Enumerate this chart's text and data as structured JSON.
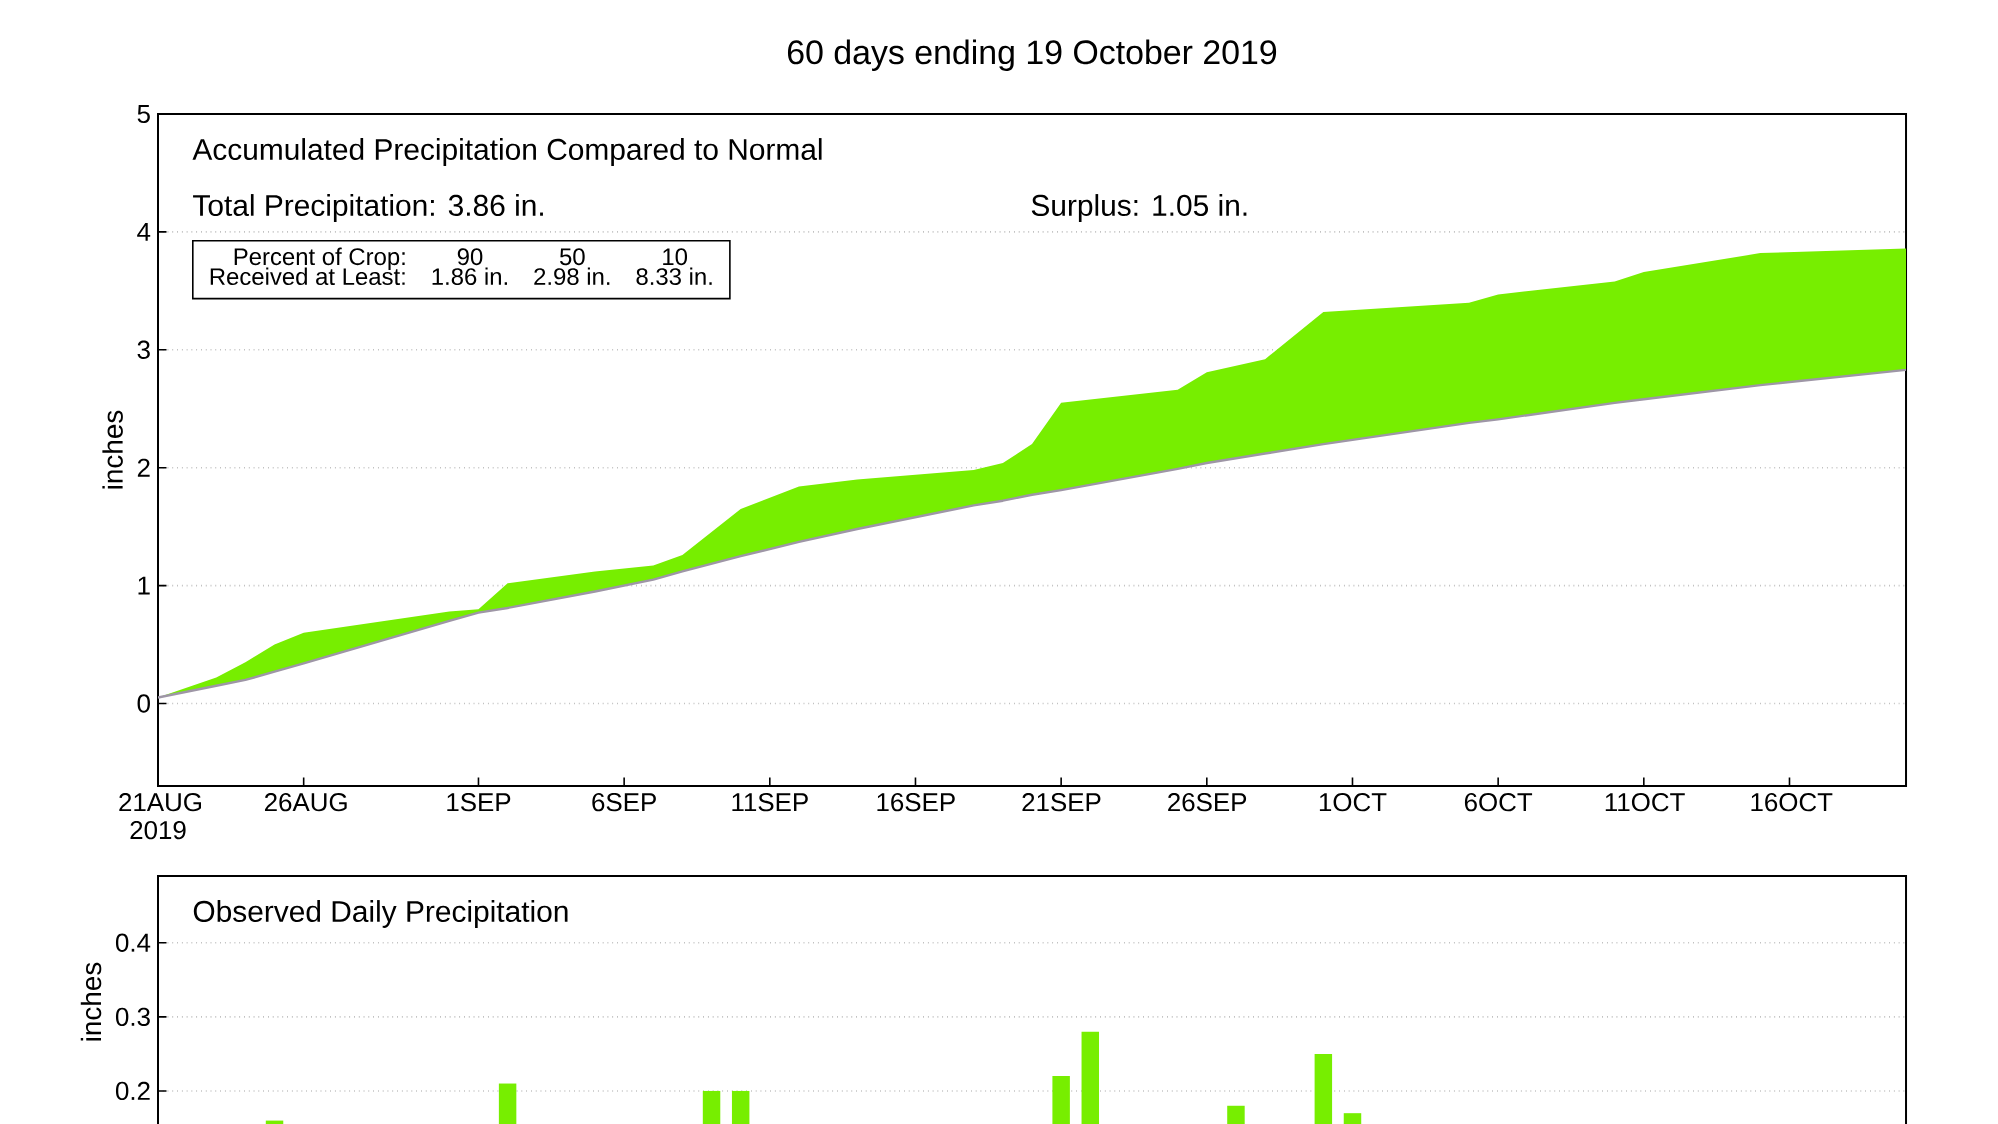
{
  "chart_data": [
    {
      "type": "area",
      "title": "60 days ending 19 October 2019",
      "ylabel": "inches",
      "annotations": [
        "Accumulated Precipitation Compared to Normal",
        "Total Precipitation: 3.86 in.",
        "Surplus: 1.05 in.",
        "Percent of Crop:",
        "90",
        "50",
        "10",
        "Received at Least:",
        "1.86 in.",
        "2.98 in.",
        "8.33 in."
      ],
      "xlim": [
        "2019-08-21",
        "2019-10-20"
      ],
      "xticks": [
        {
          "value": "2019-08-21",
          "label": "21AUG 2019"
        },
        {
          "value": "2019-08-26",
          "label": "26AUG"
        },
        {
          "value": "2019-09-01",
          "label": "1SEP"
        },
        {
          "value": "2019-09-06",
          "label": "6SEP"
        },
        {
          "value": "2019-09-11",
          "label": "11SEP"
        },
        {
          "value": "2019-09-16",
          "label": "16SEP"
        },
        {
          "value": "2019-09-21",
          "label": "21SEP"
        },
        {
          "value": "2019-09-26",
          "label": "26SEP"
        },
        {
          "value": "2019-10-01",
          "label": "1OCT"
        },
        {
          "value": "2019-10-06",
          "label": "6OCT"
        },
        {
          "value": "2019-10-11",
          "label": "11OCT"
        },
        {
          "value": "2019-10-16",
          "label": "16OCT"
        }
      ],
      "ylim": [
        -0.7,
        5
      ],
      "yticks": [
        0,
        1,
        2,
        3,
        4,
        5
      ],
      "grid": "y",
      "series": [
        {
          "type": "line",
          "color": "#9e96a6",
          "x": [
            "2019-08-21",
            "2019-08-23",
            "2019-08-24",
            "2019-08-25",
            "2019-08-26",
            "2019-08-31",
            "2019-09-01",
            "2019-09-02",
            "2019-09-05",
            "2019-09-07",
            "2019-09-08",
            "2019-09-10",
            "2019-09-12",
            "2019-09-14",
            "2019-09-18",
            "2019-09-19",
            "2019-09-20",
            "2019-09-21",
            "2019-09-25",
            "2019-09-26",
            "2019-09-28",
            "2019-09-30",
            "2019-10-05",
            "2019-10-06",
            "2019-10-10",
            "2019-10-11",
            "2019-10-15",
            "2019-10-20"
          ],
          "values": [
            0.05,
            0.15,
            0.2,
            0.27,
            0.34,
            0.7,
            0.77,
            0.81,
            0.95,
            1.05,
            1.12,
            1.25,
            1.37,
            1.48,
            1.68,
            1.72,
            1.77,
            1.81,
            1.99,
            2.04,
            2.12,
            2.2,
            2.38,
            2.41,
            2.55,
            2.58,
            2.7,
            2.83
          ],
          "lower": [
            0.05,
            0.15,
            0.2,
            0.27,
            0.34,
            0.7,
            0.77,
            0.81,
            0.95,
            1.05,
            1.12,
            1.25,
            1.37,
            1.48,
            1.68,
            1.72,
            1.77,
            1.81,
            1.99,
            2.04,
            2.12,
            2.2,
            2.38,
            2.41,
            2.55,
            2.58,
            2.7,
            2.83
          ],
          "upper": [
            0.05,
            0.22,
            0.35,
            0.5,
            0.6,
            0.78,
            0.8,
            1.02,
            1.12,
            1.17,
            1.26,
            1.65,
            1.84,
            1.9,
            1.98,
            2.04,
            2.2,
            2.55,
            2.66,
            2.81,
            2.92,
            3.32,
            3.4,
            3.47,
            3.58,
            3.66,
            3.82,
            3.86
          ]
        }
      ]
    },
    {
      "type": "bar",
      "ylabel": "inches",
      "annotations": [
        "Observed Daily Precipitation"
      ],
      "x": [
        "2019-08-25",
        "2019-09-02",
        "2019-09-09",
        "2019-09-10",
        "2019-09-21",
        "2019-09-22",
        "2019-09-27",
        "2019-09-30",
        "2019-10-01"
      ],
      "values": [
        0.16,
        0.21,
        0.2,
        0.2,
        0.22,
        0.28,
        0.18,
        0.25,
        0.17
      ],
      "color": "#77ee00",
      "xlim": [
        "2019-08-21",
        "2019-10-20"
      ],
      "ylim": [
        0.15,
        0.49
      ],
      "yticks": [
        0.2,
        0.3,
        0.4
      ],
      "grid": "y",
      "tick_labels": "y"
    }
  ]
}
